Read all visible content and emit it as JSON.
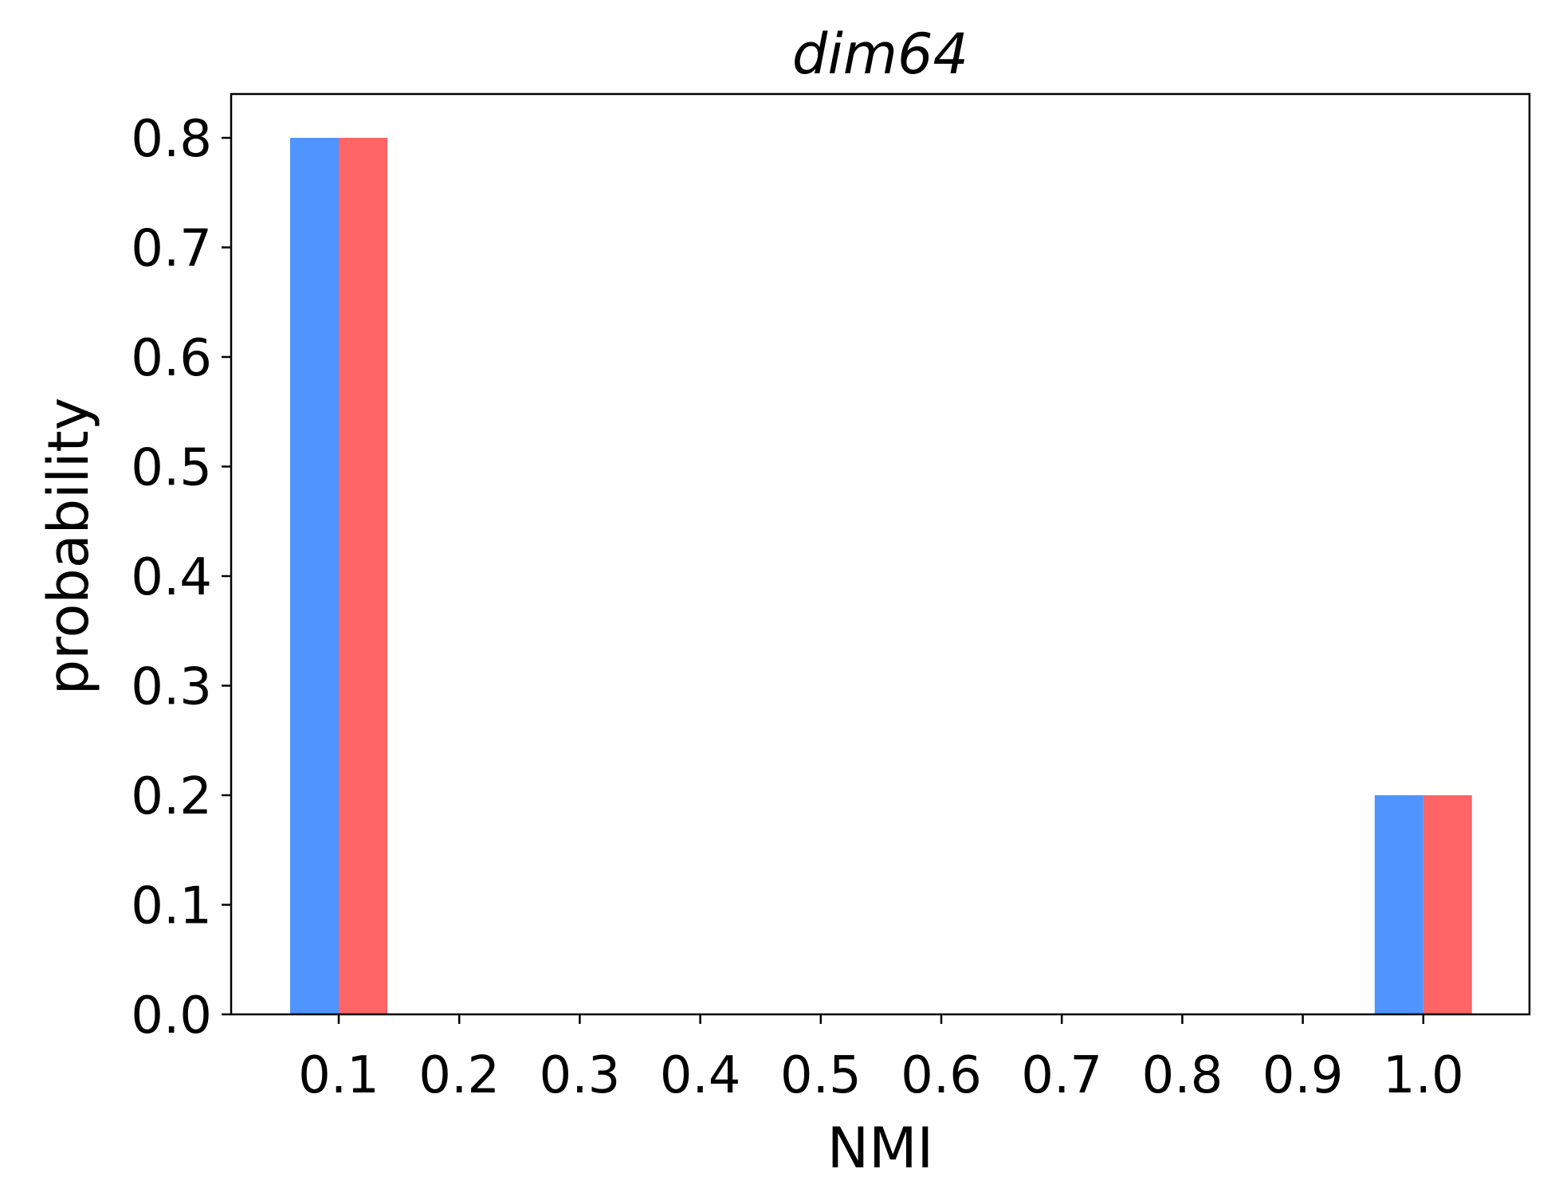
{
  "chart_data": {
    "type": "bar",
    "title": "dim64",
    "xlabel": "NMI",
    "ylabel": "probability",
    "categories": [
      "0.1",
      "0.2",
      "0.3",
      "0.4",
      "0.5",
      "0.6",
      "0.7",
      "0.8",
      "0.9",
      "1.0"
    ],
    "series": [
      {
        "color": "#4f94ff",
        "values": [
          0.8,
          0,
          0,
          0,
          0,
          0,
          0,
          0,
          0,
          0.2
        ]
      },
      {
        "color": "#ff6466",
        "values": [
          0.8,
          0,
          0,
          0,
          0,
          0,
          0,
          0,
          0,
          0.2
        ]
      }
    ],
    "ylim": [
      0,
      0.84
    ],
    "yticks": [
      "0.0",
      "0.1",
      "0.2",
      "0.3",
      "0.4",
      "0.5",
      "0.6",
      "0.7",
      "0.8"
    ],
    "grid": false,
    "legend": "none"
  }
}
